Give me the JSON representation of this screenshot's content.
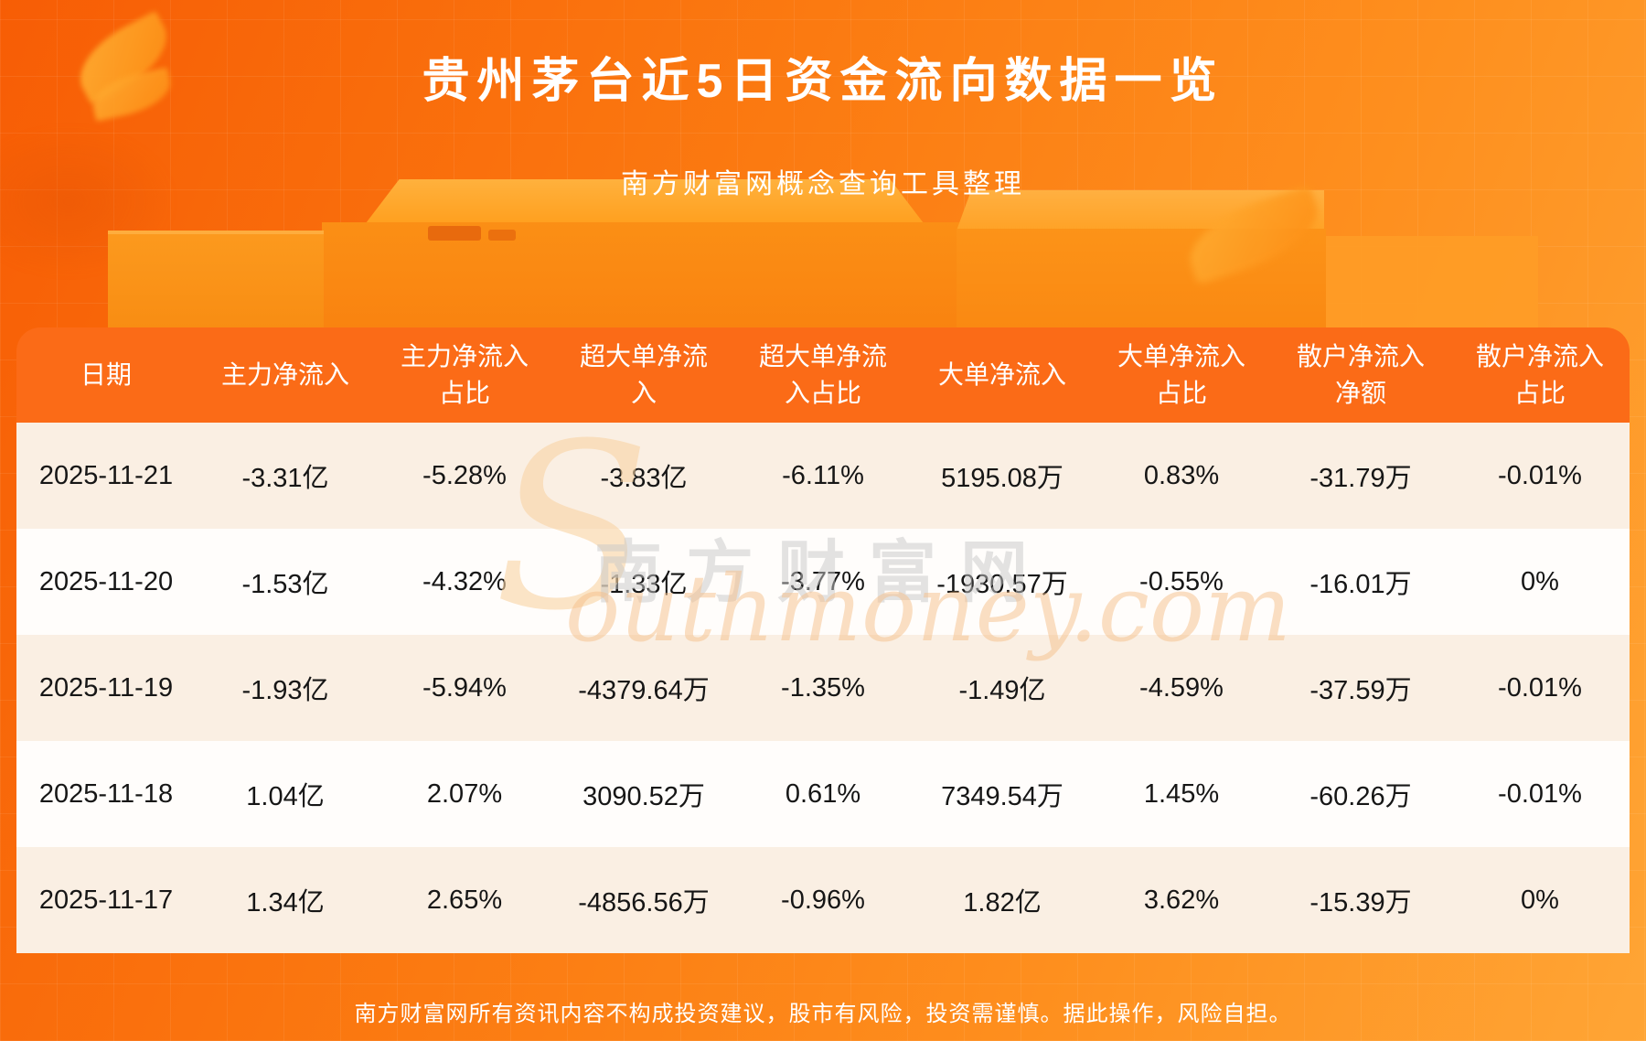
{
  "page": {
    "title": "贵州茅台近5日资金流向数据一览",
    "subtitle": "南方财富网概念查询工具整理",
    "disclaimer": "南方财富网所有资讯内容不构成投资建议，股市有风险，投资需谨慎。据此操作，风险自担。"
  },
  "watermark": {
    "initial": "S",
    "cn": "南方财富网",
    "script": "outhmoney.com"
  },
  "colors": {
    "bg_start": "#f75d05",
    "bg_mid": "#fb7a11",
    "bg_end": "#ffa535",
    "header_bg": "#fb6b17",
    "row_cream": "#faefe3",
    "row_white": "#fffdfb",
    "text_dark": "#161616",
    "text_white": "#ffffff"
  },
  "chart_data": {
    "type": "table",
    "title": "贵州茅台近5日资金流向数据一览",
    "columns": [
      "日期",
      "主力净流入",
      "主力净流入占比",
      "超大单净流入",
      "超大单净流入占比",
      "大单净流入",
      "大单净流入占比",
      "散户净流入净额",
      "散户净流入占比"
    ],
    "rows": [
      [
        "2025-11-21",
        "-3.31亿",
        "-5.28%",
        "-3.83亿",
        "-6.11%",
        "5195.08万",
        "0.83%",
        "-31.79万",
        "-0.01%"
      ],
      [
        "2025-11-20",
        "-1.53亿",
        "-4.32%",
        "-1.33亿",
        "-3.77%",
        "-1930.57万",
        "-0.55%",
        "-16.01万",
        "0%"
      ],
      [
        "2025-11-19",
        "-1.93亿",
        "-5.94%",
        "-4379.64万",
        "-1.35%",
        "-1.49亿",
        "-4.59%",
        "-37.59万",
        "-0.01%"
      ],
      [
        "2025-11-18",
        "1.04亿",
        "2.07%",
        "3090.52万",
        "0.61%",
        "7349.54万",
        "1.45%",
        "-60.26万",
        "-0.01%"
      ],
      [
        "2025-11-17",
        "1.34亿",
        "2.65%",
        "-4856.56万",
        "-0.96%",
        "1.82亿",
        "3.62%",
        "-15.39万",
        "0%"
      ]
    ]
  }
}
